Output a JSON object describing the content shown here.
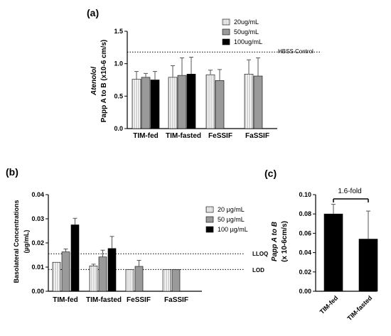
{
  "chart_data": [
    {
      "panel": "(a)",
      "type": "bar",
      "ylabel_line1": "Atenolol",
      "ylabel_line2": "Papp A to B (x10-6 cm/s)",
      "categories": [
        "TIM-fed",
        "TIM-fasted",
        "FeSSIF",
        "FaSSIF"
      ],
      "ylim": [
        0,
        1.5
      ],
      "yticks": [
        "0.0",
        "0.5",
        "1.0",
        "1.5"
      ],
      "series": [
        {
          "name": "20ug/mL",
          "values": [
            0.76,
            0.79,
            0.83,
            0.84
          ],
          "errors": [
            0.12,
            0.18,
            0.07,
            0.22
          ],
          "color": "#d4d4d4",
          "style": "white-stripes"
        },
        {
          "name": "50ug/mL",
          "values": [
            0.79,
            0.82,
            0.74,
            0.81
          ],
          "errors": [
            0.06,
            0.27,
            0.17,
            0.28
          ],
          "color": "#9a9a9a",
          "style": "solid"
        },
        {
          "name": "100ug/mL",
          "values": [
            0.75,
            0.84,
            null,
            null
          ],
          "errors": [
            0.13,
            0.26,
            null,
            null
          ],
          "color": "#000000",
          "style": "solid"
        }
      ],
      "reference_lines": [
        {
          "label": "HBSS Control",
          "value": 1.18
        }
      ],
      "legend": "top-right",
      "grid": false
    },
    {
      "panel": "(b)",
      "type": "bar",
      "ylabel_line1": "Basolateral Concentrations",
      "ylabel_line2": "(µg/mL)",
      "categories": [
        "TIM-fed",
        "TIM-fasted",
        "FeSSIF",
        "FaSSIF"
      ],
      "ylim": [
        0,
        0.04
      ],
      "yticks": [
        "0.00",
        "0.01",
        "0.02",
        "0.03",
        "0.04"
      ],
      "series": [
        {
          "name": "20 µg/mL",
          "values": [
            0.012,
            0.0105,
            0.009,
            0.009
          ],
          "errors": [
            0.0,
            0.0007,
            0.0,
            0.0
          ],
          "color": "#d4d4d4",
          "style": "white-stripes"
        },
        {
          "name": "50 µg/mL",
          "values": [
            0.0163,
            0.0142,
            0.0103,
            0.009
          ],
          "errors": [
            0.0012,
            0.0028,
            0.0025,
            0.0
          ],
          "color": "#9a9a9a",
          "style": "solid"
        },
        {
          "name": "100 µg/mL",
          "values": [
            0.0275,
            0.0177,
            null,
            null
          ],
          "errors": [
            0.0027,
            0.005,
            null,
            null
          ],
          "color": "#000000",
          "style": "solid"
        }
      ],
      "reference_lines": [
        {
          "label": "LLOQ",
          "value": 0.0155
        },
        {
          "label": "LOD",
          "value": 0.009
        }
      ],
      "legend": "top-right",
      "grid": false
    },
    {
      "panel": "(c)",
      "type": "bar",
      "ylabel_line1": "Papp A to B",
      "ylabel_line2": "(x 10-6cm/s)",
      "categories": [
        "TIM-fed",
        "TIM-fasted"
      ],
      "ylim": [
        0,
        0.1
      ],
      "yticks": [
        "0.00",
        "0.02",
        "0.04",
        "0.06",
        "0.08",
        "0.10"
      ],
      "series": [
        {
          "values": [
            0.08,
            0.054
          ],
          "errors": [
            0.01,
            0.029
          ],
          "color": "#000000",
          "style": "solid"
        }
      ],
      "annotation": "1.6-fold",
      "legend": "none",
      "grid": false
    }
  ]
}
